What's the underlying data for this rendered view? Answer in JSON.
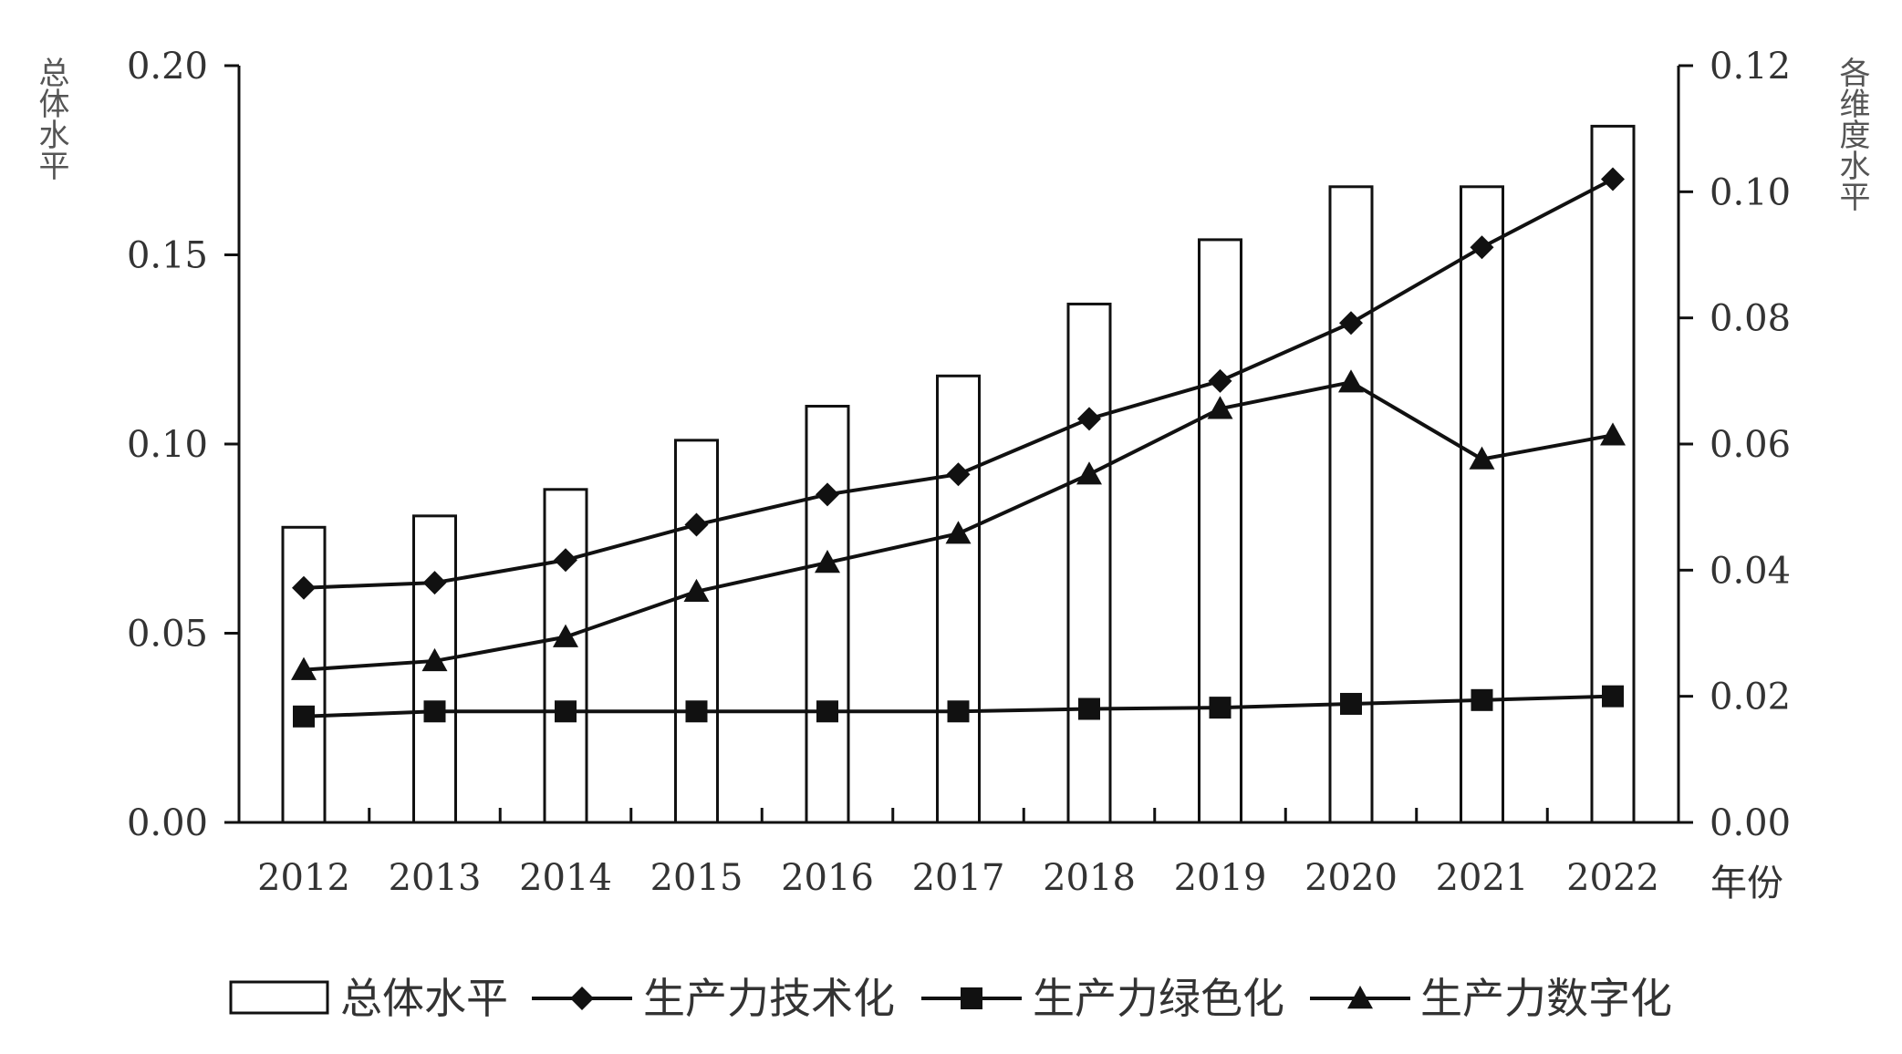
{
  "chart_data": {
    "type": "bar",
    "categories": [
      "2012",
      "2013",
      "2014",
      "2015",
      "2016",
      "2017",
      "2018",
      "2019",
      "2020",
      "2021",
      "2022"
    ],
    "bar_series": {
      "name": "总体水平",
      "axis": "left",
      "values": [
        0.078,
        0.081,
        0.088,
        0.101,
        0.11,
        0.118,
        0.137,
        0.154,
        0.168,
        0.168,
        0.184
      ]
    },
    "line_series": [
      {
        "name": "生产力技术化",
        "marker": "diamond",
        "axis": "right",
        "values": [
          0.0372,
          0.038,
          0.0416,
          0.0472,
          0.052,
          0.0552,
          0.064,
          0.07,
          0.0792,
          0.0912,
          0.102
        ]
      },
      {
        "name": "生产力绿色化",
        "marker": "square",
        "axis": "right",
        "values": [
          0.0168,
          0.0176,
          0.0176,
          0.0176,
          0.0176,
          0.0176,
          0.018,
          0.0182,
          0.0188,
          0.0194,
          0.02
        ]
      },
      {
        "name": "生产力数字化",
        "marker": "triangle",
        "axis": "right",
        "values": [
          0.0242,
          0.0256,
          0.0294,
          0.0366,
          0.0412,
          0.0458,
          0.0552,
          0.0656,
          0.0698,
          0.0576,
          0.0614
        ]
      }
    ],
    "left_axis": {
      "title": "总体水平",
      "ylim": [
        0,
        0.2
      ],
      "ticks": [
        "0.00",
        "0.05",
        "0.10",
        "0.15",
        "0.20"
      ]
    },
    "right_axis": {
      "title": "各维度水平",
      "ylim": [
        0,
        0.12
      ],
      "ticks": [
        "0.00",
        "0.02",
        "0.04",
        "0.06",
        "0.08",
        "0.10",
        "0.12"
      ]
    },
    "xlabel": "年份",
    "grid": false,
    "legend_position": "bottom"
  },
  "colors": {
    "ink": "#111111",
    "bar_fill": "#ffffff",
    "text": "#333333"
  }
}
